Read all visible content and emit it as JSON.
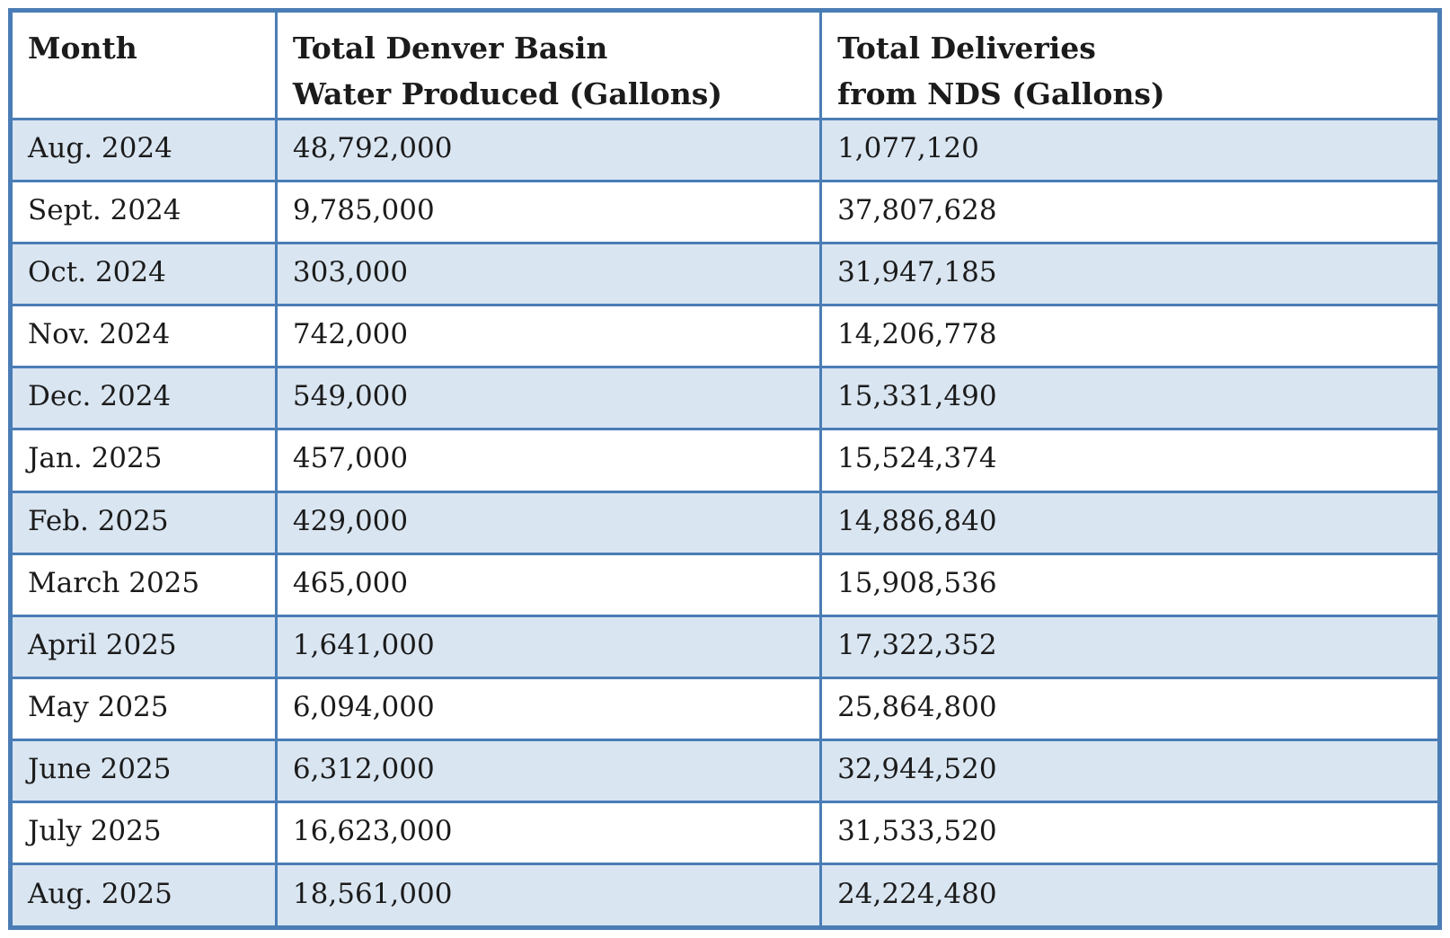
{
  "chart_data": {
    "type": "table",
    "title": "",
    "columns": [
      "Month",
      "Total Denver Basin Water Produced (Gallons)",
      "Total Deliveries from NDS (Gallons)"
    ],
    "months": [
      "Aug. 2024",
      "Sept. 2024",
      "Oct. 2024",
      "Nov. 2024",
      "Dec. 2024",
      "Jan. 2025",
      "Feb. 2025",
      "March 2025",
      "April 2025",
      "May 2025",
      "June 2025",
      "July 2025",
      "Aug. 2025"
    ],
    "series": [
      {
        "name": "Total Denver Basin Water Produced (Gallons)",
        "values": [
          48792000,
          9785000,
          303000,
          742000,
          549000,
          457000,
          429000,
          465000,
          1641000,
          6094000,
          6312000,
          16623000,
          18561000
        ]
      },
      {
        "name": "Total Deliveries from NDS (Gallons)",
        "values": [
          1077120,
          37807628,
          31947185,
          14206778,
          15331490,
          15524374,
          14886840,
          15908536,
          17322352,
          25864800,
          32944520,
          31533520,
          24224480
        ]
      }
    ]
  },
  "table": {
    "style": {
      "border_color": "#4a7db6",
      "band_fill": "#d9e5f1",
      "header_fill": "#ffffff",
      "text_color": "#1b1b1b"
    },
    "header": {
      "month": "Month",
      "produced": "Total Denver Basin\nWater Produced (Gallons)",
      "deliveries": "Total Deliveries\nfrom NDS (Gallons)"
    },
    "rows": [
      {
        "month": "Aug. 2024",
        "produced": "48,792,000",
        "deliveries": "1,077,120"
      },
      {
        "month": "Sept. 2024",
        "produced": "9,785,000",
        "deliveries": "37,807,628"
      },
      {
        "month": "Oct. 2024",
        "produced": "303,000",
        "deliveries": "31,947,185"
      },
      {
        "month": "Nov. 2024",
        "produced": "742,000",
        "deliveries": "14,206,778"
      },
      {
        "month": "Dec. 2024",
        "produced": "549,000",
        "deliveries": "15,331,490"
      },
      {
        "month": "Jan. 2025",
        "produced": "457,000",
        "deliveries": "15,524,374"
      },
      {
        "month": "Feb. 2025",
        "produced": "429,000",
        "deliveries": "14,886,840"
      },
      {
        "month": "March 2025",
        "produced": "465,000",
        "deliveries": "15,908,536"
      },
      {
        "month": "April 2025",
        "produced": "1,641,000",
        "deliveries": "17,322,352"
      },
      {
        "month": "May 2025",
        "produced": "6,094,000",
        "deliveries": "25,864,800"
      },
      {
        "month": "June 2025",
        "produced": "6,312,000",
        "deliveries": "32,944,520"
      },
      {
        "month": "July 2025",
        "produced": "16,623,000",
        "deliveries": "31,533,520"
      },
      {
        "month": "Aug. 2025",
        "produced": "18,561,000",
        "deliveries": "24,224,480"
      }
    ]
  }
}
